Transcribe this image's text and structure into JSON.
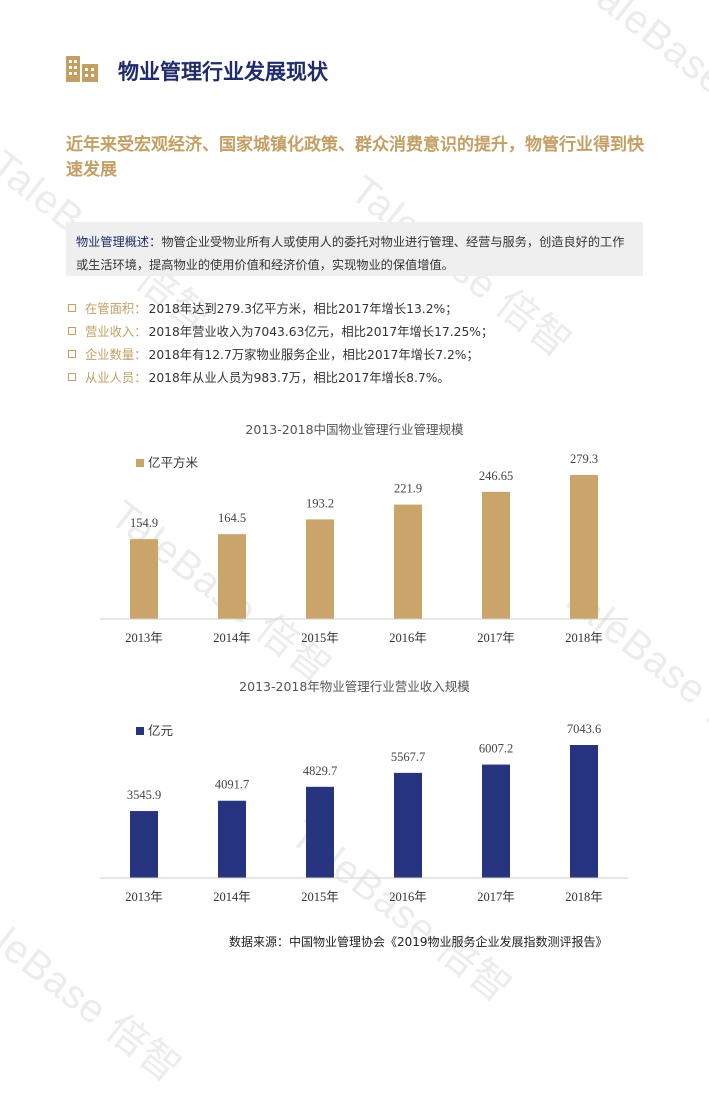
{
  "header": {
    "title": "物业管理行业发展现状",
    "icon": "building-icon"
  },
  "subtitle": "近年来受宏观经济、国家城镇化政策、群众消费意识的提升，物管行业得到快速发展",
  "overview": {
    "label": "物业管理概述：",
    "text": "物管企业受物业所有人或使用人的委托对物业进行管理、经营与服务，创造良好的工作或生活环境，提高物业的使用价值和经济价值，实现物业的保值增值。"
  },
  "bullets": [
    {
      "label": "在管面积：",
      "text": "2018年达到279.3亿平方米，相比2017年增长13.2%；"
    },
    {
      "label": "营业收入：",
      "text": "2018年营业收入为7043.63亿元，相比2017年增长17.25%；"
    },
    {
      "label": "企业数量：",
      "text": "2018年有12.7万家物业服务企业，相比2017年增长7.2%；"
    },
    {
      "label": "从业人员：",
      "text": "2018年从业人员为983.7万，相比2017年增长8.7%。"
    }
  ],
  "colors": {
    "navy": "#1f2b6b",
    "gold": "#c49f64",
    "bar_gold": "#c9a56c",
    "bar_navy": "#273581"
  },
  "chart_data": [
    {
      "type": "bar",
      "title": "2013-2018中国物业管理行业管理规模",
      "categories": [
        "2013年",
        "2014年",
        "2015年",
        "2016年",
        "2017年",
        "2018年"
      ],
      "series": [
        {
          "name": "亿平方米",
          "values": [
            154.9,
            164.5,
            193.2,
            221.9,
            246.65,
            279.3
          ]
        }
      ],
      "value_labels": [
        "154.9",
        "164.5",
        "193.2",
        "221.9",
        "246.65",
        "279.3"
      ],
      "legend": "top-left",
      "grid": false
    },
    {
      "type": "bar",
      "title": "2013-2018年物业管理行业营业收入规模",
      "categories": [
        "2013年",
        "2014年",
        "2015年",
        "2016年",
        "2017年",
        "2018年"
      ],
      "series": [
        {
          "name": "亿元",
          "values": [
            3545.9,
            4091.7,
            4829.7,
            5567.7,
            6007.2,
            7043.6
          ]
        }
      ],
      "value_labels": [
        "3545.9",
        "4091.7",
        "4829.7",
        "5567.7",
        "6007.2",
        "7043.6"
      ],
      "legend": "top-left",
      "grid": false
    }
  ],
  "source": "数据来源：中国物业管理协会《2019物业服务企业发展指数测评报告》",
  "watermark": "TaleBase 倍智"
}
